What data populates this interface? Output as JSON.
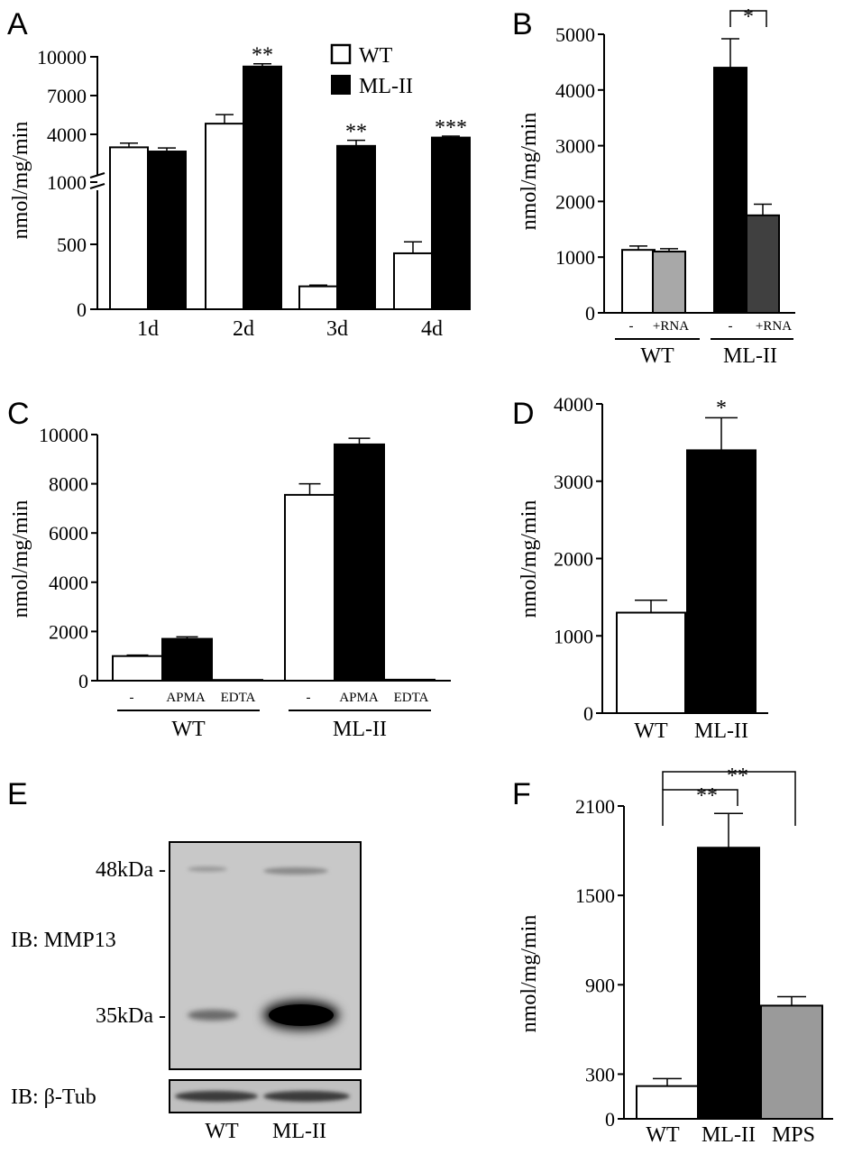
{
  "colors": {
    "wt": "#ffffff",
    "ml2": "#000000",
    "rna_wt": "#a8a8a8",
    "rna_ml2": "#404040",
    "mps": "#9a9a9a",
    "blot_bg": "#c9c9c9"
  },
  "chart_data": [
    {
      "id": "A",
      "panel_label": "A",
      "type": "bar",
      "ylabel": "nmol/mg/min",
      "categories": [
        "1d",
        "2d",
        "3d",
        "4d"
      ],
      "yticks": [
        "0",
        "500",
        "1000",
        "4000",
        "7000",
        "10000"
      ],
      "axis_break": true,
      "legend": [
        "WT",
        "ML-II"
      ],
      "legend_position": "top-right",
      "series": [
        {
          "name": "WT",
          "values": [
            3500,
            5200,
            180,
            440
          ],
          "errors": [
            300,
            650,
            10,
            90
          ]
        },
        {
          "name": "ML-II",
          "values": [
            3200,
            9300,
            3600,
            4200
          ],
          "errors": [
            250,
            200,
            400,
            100
          ]
        }
      ],
      "annotations": [
        "",
        "**",
        "**",
        "***"
      ]
    },
    {
      "id": "B",
      "panel_label": "B",
      "type": "bar",
      "ylabel": "nmol/mg/min",
      "ylim": [
        0,
        5000
      ],
      "yticks": [
        "0",
        "1000",
        "2000",
        "3000",
        "4000",
        "5000"
      ],
      "groups": [
        "WT",
        "ML-II"
      ],
      "sublabels": [
        "-",
        "+RNA",
        "-",
        "+RNA"
      ],
      "values": [
        1130,
        1100,
        4400,
        1750
      ],
      "errors": [
        70,
        50,
        520,
        200
      ],
      "significance": "*"
    },
    {
      "id": "C",
      "panel_label": "C",
      "type": "bar",
      "ylabel": "nmol/mg/min",
      "ylim": [
        0,
        10000
      ],
      "yticks": [
        "0",
        "2000",
        "4000",
        "6000",
        "8000",
        "10000"
      ],
      "groups": [
        "WT",
        "ML-II"
      ],
      "sublabels": [
        "-",
        "APMA",
        "EDTA",
        "-",
        "APMA",
        "EDTA"
      ],
      "values": [
        1000,
        1700,
        30,
        7550,
        9600,
        40
      ],
      "errors": [
        40,
        80,
        10,
        450,
        250,
        10
      ]
    },
    {
      "id": "D",
      "panel_label": "D",
      "type": "bar",
      "ylabel": "nmol/mg/min",
      "ylim": [
        0,
        4000
      ],
      "yticks": [
        "0",
        "1000",
        "2000",
        "3000",
        "4000"
      ],
      "categories": [
        "WT",
        "ML-II"
      ],
      "values": [
        1300,
        3400
      ],
      "errors": [
        160,
        420
      ],
      "significance": "*"
    },
    {
      "id": "F",
      "panel_label": "F",
      "type": "bar",
      "ylabel": "nmol/mg/min",
      "ylim": [
        0,
        2100
      ],
      "yticks": [
        "0",
        "300",
        "900",
        "1500",
        "2100"
      ],
      "categories": [
        "WT",
        "ML-II",
        "MPS"
      ],
      "values": [
        220,
        1820,
        760
      ],
      "errors": [
        50,
        230,
        60
      ],
      "significance": [
        "**",
        "**"
      ]
    }
  ],
  "western_blot": {
    "panel_label": "E",
    "markers": [
      "48kDa -",
      "35kDa -"
    ],
    "ib_main": "IB: MMP13",
    "ib_loading": "IB: β-Tub",
    "lanes": [
      "WT",
      "ML-II"
    ],
    "band_35kDa_intensity": [
      0.25,
      1.0
    ],
    "band_48kDa_intensity": [
      0.08,
      0.18
    ],
    "loading_intensity": [
      0.7,
      0.7
    ]
  }
}
